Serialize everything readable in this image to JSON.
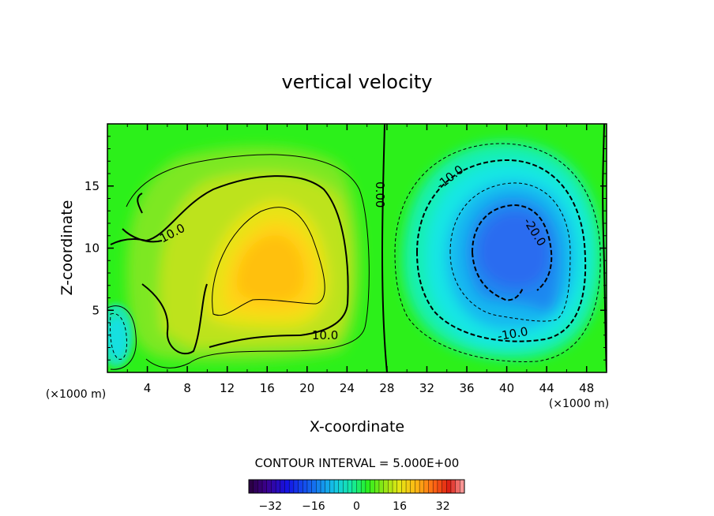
{
  "chart_data": {
    "type": "heatmap",
    "title": "vertical velocity",
    "xlabel": "X-coordinate",
    "ylabel": "Z-coordinate",
    "x_unit_left": "(×1000 m)",
    "x_unit_right": "(×1000 m)",
    "xlim": [
      0,
      50
    ],
    "ylim": [
      0,
      20
    ],
    "xticks": [
      4,
      8,
      12,
      16,
      20,
      24,
      28,
      32,
      36,
      40,
      44,
      48
    ],
    "yticks": [
      5,
      10,
      15
    ],
    "contour_interval_text": "CONTOUR INTERVAL = 5.000E+00",
    "contour_labels": [
      {
        "text": "10.0",
        "x": 6.5,
        "z": 11.2,
        "rotate": -28
      },
      {
        "text": "10.0",
        "x": 21.8,
        "z": 3.0,
        "rotate": 0
      },
      {
        "text": "0.00",
        "x": 27.3,
        "z": 14.3,
        "rotate": 90
      },
      {
        "text": "-10.0",
        "x": 34.3,
        "z": 15.7,
        "rotate": -38
      },
      {
        "text": "-20.0",
        "x": 42.8,
        "z": 11.3,
        "rotate": 58
      },
      {
        "text": "-10.0",
        "x": 40.6,
        "z": 3.1,
        "rotate": -10
      }
    ],
    "color_scale": {
      "min": -40,
      "max": 40,
      "tick_labels": [
        "-32",
        "-16",
        "0",
        "16",
        "32"
      ],
      "tick_values": [
        -32,
        -16,
        0,
        16,
        32
      ]
    },
    "features": [
      {
        "name": "updraft",
        "center_x": 16,
        "center_z": 9,
        "peak": 16
      },
      {
        "name": "downdraft",
        "center_x": 40,
        "center_z": 10,
        "peak": -24
      },
      {
        "name": "small-downdraft",
        "center_x": 1,
        "center_z": 3,
        "peak": -9
      }
    ]
  }
}
